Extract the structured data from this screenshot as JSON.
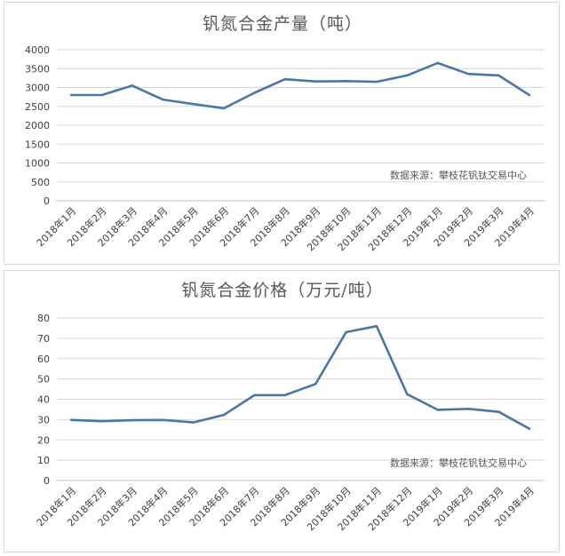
{
  "chart_data": [
    {
      "type": "line",
      "title": "钒氮合金产量（吨）",
      "categories": [
        "2018年1月",
        "2018年2月",
        "2018年3月",
        "2018年4月",
        "2018年5月",
        "2018年6月",
        "2018年7月",
        "2018年8月",
        "2018年9月",
        "2018年10月",
        "2018年11月",
        "2018年12月",
        "2019年1月",
        "2019年2月",
        "2019年3月",
        "2019年4月"
      ],
      "values": [
        2800,
        2800,
        3050,
        2680,
        2560,
        2450,
        2860,
        3220,
        3160,
        3170,
        3150,
        3320,
        3650,
        3360,
        3320,
        2800
      ],
      "ylim": [
        0,
        4000
      ],
      "yticks": [
        "0",
        "500",
        "1000",
        "1500",
        "2000",
        "2500",
        "3000",
        "3500",
        "4000"
      ],
      "grid": true,
      "source": "数据来源：攀枝花钒钛交易中心",
      "color": "#4a76ae"
    },
    {
      "type": "line",
      "title": "钒氮合金价格（万元/吨）",
      "categories": [
        "2018年1月",
        "2018年2月",
        "2018年3月",
        "2018年4月",
        "2018年5月",
        "2018年6月",
        "2018年7月",
        "2018年8月",
        "2018年9月",
        "2018年10月",
        "2018年11月",
        "2018年12月",
        "2019年1月",
        "2019年2月",
        "2019年3月",
        "2019年4月"
      ],
      "values": [
        29.8,
        29.2,
        29.7,
        29.8,
        28.6,
        32.3,
        42.0,
        42.0,
        47.5,
        73.0,
        76.0,
        42.5,
        34.8,
        35.3,
        33.8,
        25.5
      ],
      "ylim": [
        0,
        80
      ],
      "yticks": [
        "0",
        "10",
        "20",
        "30",
        "40",
        "50",
        "60",
        "70",
        "80"
      ],
      "grid": true,
      "source": "数据来源：攀枝花钒钛交易中心",
      "color": "#4a76ae"
    }
  ]
}
